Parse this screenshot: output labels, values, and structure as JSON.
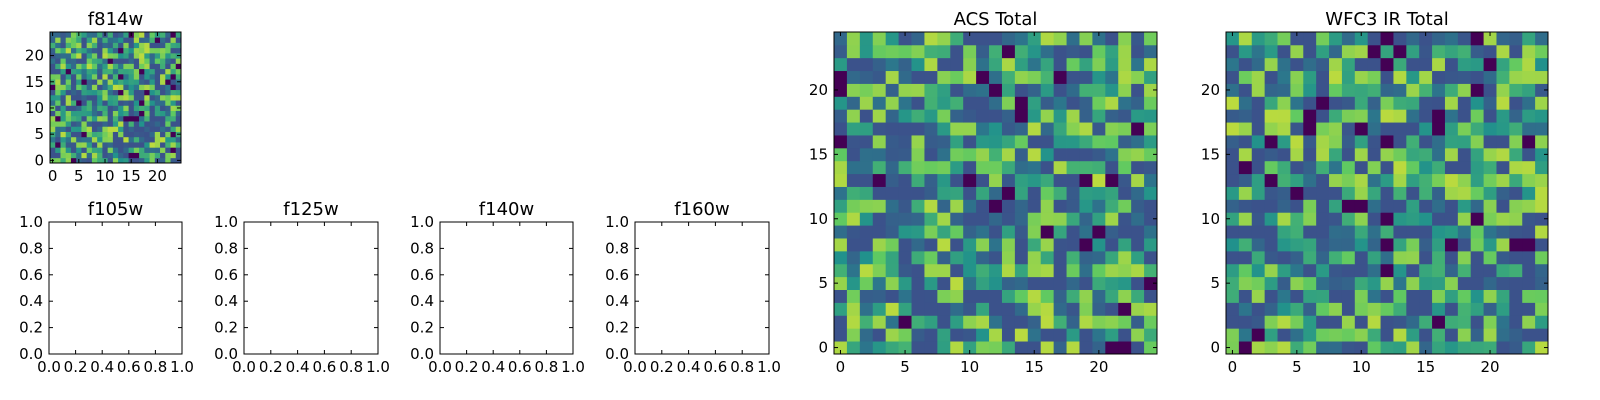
{
  "palette": [
    "#440154",
    "#3b528b",
    "#21918c",
    "#5ec962",
    "#fde725"
  ],
  "chart_data": [
    {
      "type": "heatmap",
      "title": "f814w",
      "xlim": [
        -0.5,
        24.5
      ],
      "ylim": [
        -0.5,
        24.5
      ],
      "xticks": [
        "0",
        "5",
        "10",
        "15",
        "20"
      ],
      "xtick_values": [
        0,
        5,
        10,
        15,
        20
      ],
      "yticks": [
        "0",
        "5",
        "10",
        "15",
        "20"
      ],
      "ytick_values": [
        0,
        5,
        10,
        15,
        20
      ],
      "grid_size": [
        25,
        25
      ],
      "value_range": [
        0,
        1
      ],
      "colormap": "viridis",
      "values_note_free": true
    },
    {
      "type": "empty",
      "title": "f105w",
      "xlim": [
        0,
        1
      ],
      "ylim": [
        0,
        1
      ],
      "xticks": [
        "0.0",
        "0.2",
        "0.4",
        "0.6",
        "0.8",
        "1.0"
      ],
      "xtick_values": [
        0,
        0.2,
        0.4,
        0.6,
        0.8,
        1.0
      ],
      "yticks": [
        "0.0",
        "0.2",
        "0.4",
        "0.6",
        "0.8",
        "1.0"
      ],
      "ytick_values": [
        0,
        0.2,
        0.4,
        0.6,
        0.8,
        1.0
      ]
    },
    {
      "type": "empty",
      "title": "f125w",
      "xlim": [
        0,
        1
      ],
      "ylim": [
        0,
        1
      ],
      "xticks": [
        "0.0",
        "0.2",
        "0.4",
        "0.6",
        "0.8",
        "1.0"
      ],
      "xtick_values": [
        0,
        0.2,
        0.4,
        0.6,
        0.8,
        1.0
      ],
      "yticks": [
        "0.0",
        "0.2",
        "0.4",
        "0.6",
        "0.8",
        "1.0"
      ],
      "ytick_values": [
        0,
        0.2,
        0.4,
        0.6,
        0.8,
        1.0
      ]
    },
    {
      "type": "empty",
      "title": "f140w",
      "xlim": [
        0,
        1
      ],
      "ylim": [
        0,
        1
      ],
      "xticks": [
        "0.0",
        "0.2",
        "0.4",
        "0.6",
        "0.8",
        "1.0"
      ],
      "xtick_values": [
        0,
        0.2,
        0.4,
        0.6,
        0.8,
        1.0
      ],
      "yticks": [
        "0.0",
        "0.2",
        "0.4",
        "0.6",
        "0.8",
        "1.0"
      ],
      "ytick_values": [
        0,
        0.2,
        0.4,
        0.6,
        0.8,
        1.0
      ]
    },
    {
      "type": "empty",
      "title": "f160w",
      "xlim": [
        0,
        1
      ],
      "ylim": [
        0,
        1
      ],
      "xticks": [
        "0.0",
        "0.2",
        "0.4",
        "0.6",
        "0.8",
        "1.0"
      ],
      "xtick_values": [
        0,
        0.2,
        0.4,
        0.6,
        0.8,
        1.0
      ],
      "yticks": [
        "0.0",
        "0.2",
        "0.4",
        "0.6",
        "0.8",
        "1.0"
      ],
      "ytick_values": [
        0,
        0.2,
        0.4,
        0.6,
        0.8,
        1.0
      ]
    },
    {
      "type": "heatmap",
      "title": "ACS Total",
      "xlim": [
        -0.5,
        24.5
      ],
      "ylim": [
        -0.5,
        24.5
      ],
      "xticks": [
        "0",
        "5",
        "10",
        "15",
        "20"
      ],
      "xtick_values": [
        0,
        5,
        10,
        15,
        20
      ],
      "yticks": [
        "0",
        "5",
        "10",
        "15",
        "20"
      ],
      "ytick_values": [
        0,
        5,
        10,
        15,
        20
      ],
      "grid_size": [
        25,
        25
      ],
      "value_range": [
        0,
        1
      ],
      "colormap": "viridis"
    },
    {
      "type": "heatmap",
      "title": "WFC3 IR Total",
      "xlim": [
        -0.5,
        24.5
      ],
      "ylim": [
        -0.5,
        24.5
      ],
      "xticks": [
        "0",
        "5",
        "10",
        "15",
        "20"
      ],
      "xtick_values": [
        0,
        5,
        10,
        15,
        20
      ],
      "yticks": [
        "0",
        "5",
        "10",
        "15",
        "20"
      ],
      "ytick_values": [
        0,
        5,
        10,
        15,
        20
      ],
      "grid_size": [
        25,
        25
      ],
      "value_range": [
        0,
        1
      ],
      "colormap": "viridis"
    }
  ]
}
